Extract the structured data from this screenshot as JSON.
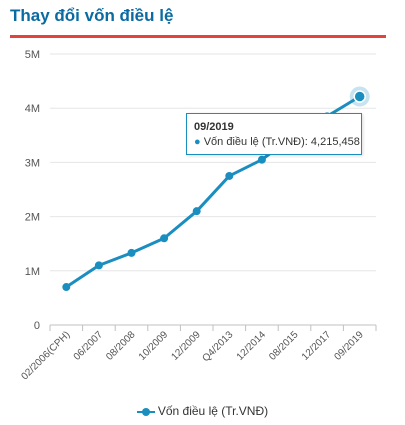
{
  "title": "Thay đổi vốn điều lệ",
  "colors": {
    "series": "#1b8ec0",
    "title": "#0a6aa1",
    "rule": "#e0443a",
    "grid": "#e6e6e6"
  },
  "tooltip": {
    "date": "09/2019",
    "bullet": "●",
    "series_label": "Vốn điều lệ (Tr.VNĐ):",
    "value": "4,215,458"
  },
  "legend": {
    "label": "Vốn điều lệ (Tr.VNĐ)"
  },
  "chart_data": {
    "type": "line",
    "title": "Thay đổi vốn điều lệ",
    "xlabel": "",
    "ylabel": "",
    "ylim": [
      0,
      5000000
    ],
    "yticks": [
      0,
      1000000,
      2000000,
      3000000,
      4000000,
      5000000
    ],
    "ytick_labels": [
      "0",
      "1M",
      "2M",
      "3M",
      "4M",
      "5M"
    ],
    "grid": "horizontal",
    "legend_position": "bottom",
    "categories": [
      "02/2006(CPH)",
      "06/2007",
      "08/2008",
      "10/2009",
      "12/2009",
      "Q4/2013",
      "12/2014",
      "08/2015",
      "12/2017",
      "09/2019"
    ],
    "series": [
      {
        "name": "Vốn điều lệ (Tr.VNĐ)",
        "values": [
          700000,
          1100000,
          1330000,
          1600000,
          2100000,
          2750000,
          3050000,
          3500000,
          3850000,
          4215458
        ]
      }
    ],
    "highlighted_index": 9
  }
}
